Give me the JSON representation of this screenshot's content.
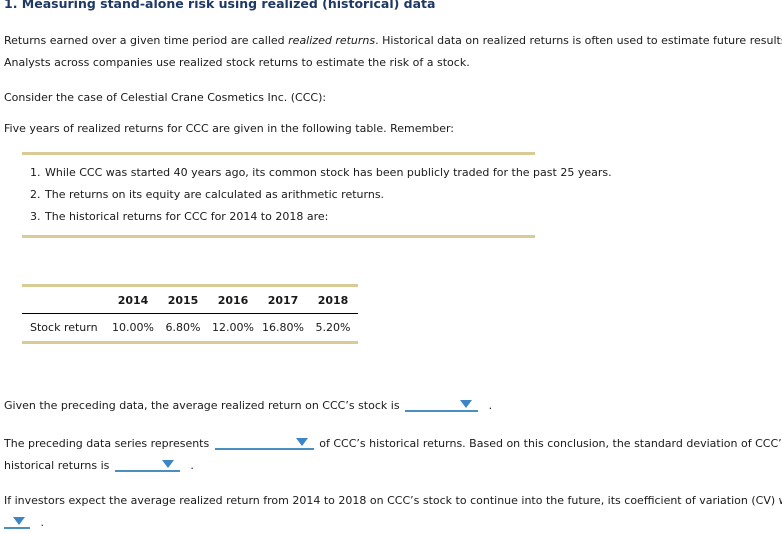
{
  "title": "1. Measuring stand-alone risk using realized (historical) data",
  "intro": {
    "line1_pre": "Returns earned over a given time period are called ",
    "line1_italic": "realized returns",
    "line1_post": ". Historical data on realized returns is often used to estimate future results.",
    "line2": "Analysts across companies use realized stock returns to estimate the risk of a stock.",
    "consider": "Consider the case of Celestial Crane Cosmetics Inc. (CCC):",
    "five_years": "Five years of realized returns for CCC are given in the following table. Remember:"
  },
  "notes": [
    {
      "num": "1.",
      "text": "While CCC was started 40 years ago, its common stock has been publicly traded for the past 25 years."
    },
    {
      "num": "2.",
      "text": "The returns on its equity are calculated as arithmetic returns."
    },
    {
      "num": "3.",
      "text": "The historical returns for CCC for 2014 to 2018 are:"
    }
  ],
  "returns_table": {
    "row_label": "Stock return",
    "years": [
      "2014",
      "2015",
      "2016",
      "2017",
      "2018"
    ],
    "values": [
      "10.00%",
      "6.80%",
      "12.00%",
      "16.80%",
      "5.20%"
    ]
  },
  "questions": {
    "q1_text": "Given the preceding data, the average realized return on CCC’s stock is",
    "q1_period": ".",
    "q2_line1_pre": "The preceding data series represents",
    "q2_line1_post": "of CCC’s historical returns. Based on this conclusion, the standard deviation of CCC’s",
    "q2_line2_pre": "historical returns is",
    "q2_period": ".",
    "q3_line1": "If investors expect the average realized return from 2014 to 2018 on CCC’s stock to continue into the future, its coefficient of variation (CV) will be",
    "q3_period": "."
  },
  "colors": {
    "title_navy": "#1F3864",
    "tan_rule": "#D8CB96",
    "dropdown_blue": "#3D85C6",
    "underline_blue": "#4A8FC0",
    "body_text": "#1A1A1A"
  }
}
